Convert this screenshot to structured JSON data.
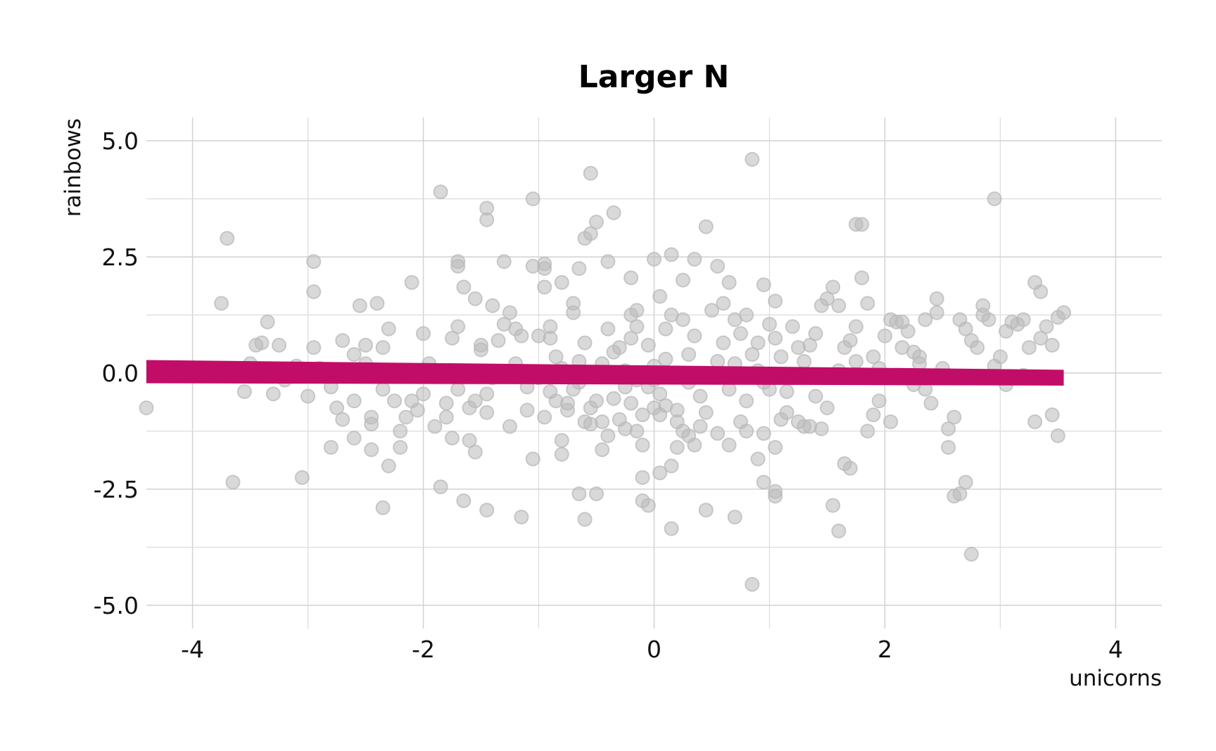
{
  "chart_data": {
    "type": "scatter",
    "title": "Larger N",
    "xlabel": "unicorns",
    "ylabel": "rainbows",
    "xlim": [
      -4.4,
      4.4
    ],
    "ylim": [
      -5.5,
      5.5
    ],
    "x_ticks": [
      -4,
      -2,
      0,
      2,
      4
    ],
    "x_tick_labels": [
      "-4",
      "-2",
      "0",
      "2",
      "4"
    ],
    "y_ticks": [
      5,
      2.5,
      0,
      -2.5,
      -5
    ],
    "y_tick_labels": [
      "5.0",
      "2.5",
      "0.0",
      "-2.5",
      "-5.0"
    ],
    "grid": true,
    "point_color": "#b9b9b9",
    "fit_color": "#c20d68",
    "fit_line": {
      "x": [
        -4.4,
        3.55
      ],
      "y_upper": [
        0.28,
        0.07
      ],
      "y_lower": [
        -0.22,
        -0.27
      ],
      "y_mid": [
        0.03,
        -0.1
      ]
    },
    "points": [
      [
        -4.4,
        -0.75
      ],
      [
        -3.75,
        1.5
      ],
      [
        -3.7,
        2.9
      ],
      [
        -3.65,
        -2.35
      ],
      [
        -3.55,
        -0.4
      ],
      [
        -3.45,
        0.6
      ],
      [
        -3.4,
        0.65
      ],
      [
        -3.35,
        1.1
      ],
      [
        -3.25,
        0.6
      ],
      [
        -3.2,
        -0.15
      ],
      [
        -3.05,
        -2.25
      ],
      [
        -2.95,
        2.4
      ],
      [
        -2.95,
        1.75
      ],
      [
        -2.95,
        0.55
      ],
      [
        -2.8,
        -1.6
      ],
      [
        -2.75,
        -0.75
      ],
      [
        -2.7,
        0.7
      ],
      [
        -2.6,
        -1.4
      ],
      [
        -2.6,
        -0.6
      ],
      [
        -2.55,
        1.45
      ],
      [
        -2.5,
        0.2
      ],
      [
        -2.45,
        -1.65
      ],
      [
        -2.45,
        -0.95
      ],
      [
        -2.4,
        1.5
      ],
      [
        -2.35,
        -2.9
      ],
      [
        -2.35,
        -0.35
      ],
      [
        -2.3,
        0.95
      ],
      [
        -2.2,
        -1.6
      ],
      [
        -2.1,
        1.95
      ],
      [
        -2.05,
        -0.8
      ],
      [
        -2.0,
        0.85
      ],
      [
        -1.95,
        0.2
      ],
      [
        -1.85,
        3.9
      ],
      [
        -1.85,
        -2.45
      ],
      [
        -1.8,
        -0.95
      ],
      [
        -1.75,
        -1.4
      ],
      [
        -1.7,
        2.4
      ],
      [
        -1.7,
        1.0
      ],
      [
        -1.7,
        -0.35
      ],
      [
        -1.65,
        -2.75
      ],
      [
        -1.6,
        -0.75
      ],
      [
        -1.55,
        -1.7
      ],
      [
        -1.55,
        1.6
      ],
      [
        -1.5,
        0.5
      ],
      [
        -1.5,
        0.6
      ],
      [
        -1.45,
        3.55
      ],
      [
        -1.45,
        3.3
      ],
      [
        -1.45,
        -2.95
      ],
      [
        -1.45,
        -0.45
      ],
      [
        -1.4,
        1.45
      ],
      [
        -1.35,
        0.7
      ],
      [
        -1.3,
        2.4
      ],
      [
        -1.25,
        -1.15
      ],
      [
        -1.2,
        0.2
      ],
      [
        -1.15,
        0.8
      ],
      [
        -1.15,
        -3.1
      ],
      [
        -1.1,
        -0.8
      ],
      [
        -1.05,
        -1.85
      ],
      [
        -1.05,
        2.3
      ],
      [
        -1.0,
        0.8
      ],
      [
        -0.95,
        -0.95
      ],
      [
        -0.95,
        2.35
      ],
      [
        -0.95,
        1.85
      ],
      [
        -0.9,
        0.75
      ],
      [
        -0.9,
        1.0
      ],
      [
        -0.85,
        -0.6
      ],
      [
        -0.8,
        1.95
      ],
      [
        -0.8,
        -1.75
      ],
      [
        -0.8,
        -1.45
      ],
      [
        -0.75,
        -0.65
      ],
      [
        -0.7,
        1.5
      ],
      [
        -0.7,
        1.3
      ],
      [
        -0.65,
        0.25
      ],
      [
        -0.6,
        -1.05
      ],
      [
        -0.55,
        -0.75
      ],
      [
        -0.5,
        -2.6
      ],
      [
        -0.45,
        -1.65
      ],
      [
        -0.4,
        0.95
      ],
      [
        -0.35,
        0.45
      ],
      [
        -0.3,
        0.55
      ],
      [
        -0.25,
        -1.2
      ],
      [
        -0.2,
        2.05
      ],
      [
        -0.2,
        1.25
      ],
      [
        -0.15,
        1.0
      ],
      [
        -0.1,
        -0.9
      ],
      [
        -0.05,
        0.6
      ],
      [
        0.0,
        2.45
      ],
      [
        0.0,
        -0.15
      ],
      [
        0.05,
        1.65
      ],
      [
        0.1,
        0.3
      ],
      [
        0.15,
        1.25
      ],
      [
        0.2,
        -1.05
      ],
      [
        0.25,
        2.0
      ],
      [
        0.3,
        0.4
      ],
      [
        0.35,
        0.8
      ],
      [
        0.4,
        -1.15
      ],
      [
        0.45,
        -0.85
      ],
      [
        0.5,
        1.35
      ],
      [
        0.55,
        0.25
      ],
      [
        0.6,
        0.65
      ],
      [
        0.65,
        1.95
      ],
      [
        0.7,
        1.15
      ],
      [
        0.75,
        0.85
      ],
      [
        0.8,
        -0.6
      ],
      [
        0.85,
        0.4
      ],
      [
        0.9,
        0.05
      ],
      [
        0.95,
        -1.3
      ],
      [
        1.0,
        1.05
      ],
      [
        1.05,
        0.75
      ],
      [
        1.1,
        0.35
      ],
      [
        1.15,
        -0.4
      ],
      [
        1.2,
        1.0
      ],
      [
        1.25,
        0.55
      ],
      [
        1.3,
        -1.15
      ],
      [
        1.35,
        0.6
      ],
      [
        1.4,
        0.85
      ],
      [
        1.45,
        1.45
      ],
      [
        1.5,
        1.6
      ],
      [
        1.55,
        1.85
      ],
      [
        1.6,
        1.45
      ],
      [
        1.65,
        0.55
      ],
      [
        1.7,
        0.7
      ],
      [
        1.75,
        1.0
      ],
      [
        1.8,
        2.05
      ],
      [
        1.85,
        -1.25
      ],
      [
        1.9,
        -0.9
      ],
      [
        1.95,
        -0.6
      ],
      [
        2.0,
        0.8
      ],
      [
        2.05,
        1.15
      ],
      [
        2.1,
        1.1
      ],
      [
        2.15,
        1.1
      ],
      [
        2.2,
        0.9
      ],
      [
        2.25,
        0.45
      ],
      [
        2.3,
        0.2
      ],
      [
        2.35,
        1.15
      ],
      [
        2.4,
        -0.65
      ],
      [
        2.45,
        1.6
      ],
      [
        2.5,
        0.1
      ],
      [
        2.55,
        -1.2
      ],
      [
        2.6,
        -0.95
      ],
      [
        2.65,
        1.15
      ],
      [
        2.7,
        0.95
      ],
      [
        2.75,
        0.7
      ],
      [
        2.8,
        0.55
      ],
      [
        2.85,
        1.45
      ],
      [
        2.9,
        1.15
      ],
      [
        2.95,
        0.15
      ],
      [
        3.0,
        0.35
      ],
      [
        3.05,
        0.9
      ],
      [
        3.1,
        1.1
      ],
      [
        3.15,
        1.05
      ],
      [
        3.2,
        -0.05
      ],
      [
        3.25,
        0.55
      ],
      [
        3.3,
        -1.05
      ],
      [
        3.35,
        0.75
      ],
      [
        3.4,
        1.0
      ],
      [
        3.45,
        0.6
      ],
      [
        3.5,
        1.2
      ],
      [
        3.55,
        1.3
      ],
      [
        3.5,
        -1.35
      ],
      [
        3.45,
        -0.9
      ],
      [
        3.35,
        1.75
      ],
      [
        3.3,
        1.95
      ],
      [
        3.2,
        1.15
      ],
      [
        3.05,
        -0.25
      ],
      [
        2.95,
        3.75
      ],
      [
        2.85,
        1.25
      ],
      [
        2.75,
        -3.9
      ],
      [
        2.7,
        -2.35
      ],
      [
        2.65,
        -2.6
      ],
      [
        2.6,
        -2.65
      ],
      [
        2.55,
        -1.6
      ],
      [
        2.45,
        1.3
      ],
      [
        2.35,
        -0.35
      ],
      [
        2.3,
        0.35
      ],
      [
        2.25,
        -0.25
      ],
      [
        2.15,
        0.55
      ],
      [
        2.05,
        -1.05
      ],
      [
        1.95,
        0.1
      ],
      [
        1.85,
        1.5
      ],
      [
        1.8,
        3.2
      ],
      [
        1.75,
        3.2
      ],
      [
        1.7,
        -2.05
      ],
      [
        1.65,
        -1.95
      ],
      [
        1.6,
        -3.4
      ],
      [
        1.55,
        -2.85
      ],
      [
        1.5,
        -0.75
      ],
      [
        1.45,
        -1.2
      ],
      [
        1.35,
        -1.15
      ],
      [
        1.25,
        -1.05
      ],
      [
        1.15,
        -0.85
      ],
      [
        1.05,
        -1.6
      ],
      [
        0.95,
        -0.2
      ],
      [
        0.9,
        -1.85
      ],
      [
        0.85,
        4.6
      ],
      [
        0.85,
        -4.55
      ],
      [
        0.8,
        -1.25
      ],
      [
        0.75,
        -1.05
      ],
      [
        0.7,
        -3.1
      ],
      [
        0.65,
        -1.55
      ],
      [
        0.55,
        -1.3
      ],
      [
        0.45,
        -2.95
      ],
      [
        0.4,
        -0.5
      ],
      [
        0.35,
        -1.55
      ],
      [
        0.3,
        -1.35
      ],
      [
        0.25,
        -1.25
      ],
      [
        0.2,
        -1.6
      ],
      [
        0.15,
        -3.35
      ],
      [
        0.15,
        -2.0
      ],
      [
        0.1,
        -0.7
      ],
      [
        0.05,
        -0.45
      ],
      [
        0.0,
        -0.75
      ],
      [
        -0.05,
        -2.85
      ],
      [
        -0.1,
        -2.75
      ],
      [
        -0.1,
        -1.55
      ],
      [
        -0.15,
        -1.25
      ],
      [
        -0.2,
        -0.65
      ],
      [
        -0.25,
        -0.3
      ],
      [
        -0.3,
        -1.0
      ],
      [
        -0.35,
        -0.55
      ],
      [
        -0.4,
        -1.35
      ],
      [
        -0.45,
        -1.05
      ],
      [
        -0.5,
        -0.6
      ],
      [
        -0.55,
        -1.1
      ],
      [
        -0.6,
        -3.15
      ],
      [
        -0.65,
        -0.2
      ],
      [
        -0.7,
        -0.35
      ],
      [
        -0.75,
        -0.8
      ],
      [
        -0.8,
        0.1
      ],
      [
        -0.85,
        0.35
      ],
      [
        -0.9,
        -0.4
      ],
      [
        -1.0,
        -0.1
      ],
      [
        -1.1,
        -0.3
      ],
      [
        -1.2,
        0.95
      ],
      [
        -1.25,
        1.3
      ],
      [
        -1.3,
        1.05
      ],
      [
        -1.35,
        0.0
      ],
      [
        -1.4,
        -0.1
      ],
      [
        -1.45,
        -0.85
      ],
      [
        -1.55,
        -0.6
      ],
      [
        -1.6,
        -1.45
      ],
      [
        -1.65,
        1.85
      ],
      [
        -1.7,
        2.3
      ],
      [
        -1.75,
        0.75
      ],
      [
        -1.8,
        -0.65
      ],
      [
        -1.9,
        -1.15
      ],
      [
        -2.0,
        -0.45
      ],
      [
        -2.1,
        -0.6
      ],
      [
        -2.15,
        -0.95
      ],
      [
        -2.2,
        -1.25
      ],
      [
        -2.25,
        -0.6
      ],
      [
        -2.3,
        -2.0
      ],
      [
        -2.35,
        0.55
      ],
      [
        -2.45,
        -1.1
      ],
      [
        -2.5,
        0.6
      ],
      [
        -2.55,
        -0.05
      ],
      [
        -2.6,
        0.4
      ],
      [
        -2.7,
        -1.0
      ],
      [
        -2.8,
        -0.3
      ],
      [
        -2.9,
        0.1
      ],
      [
        -3.0,
        -0.5
      ],
      [
        -3.1,
        0.15
      ],
      [
        -3.3,
        -0.45
      ],
      [
        -3.5,
        0.2
      ],
      [
        -0.55,
        4.3
      ],
      [
        -0.5,
        3.25
      ],
      [
        -0.55,
        3.0
      ],
      [
        -0.6,
        2.9
      ],
      [
        -0.35,
        3.45
      ],
      [
        0.45,
        3.15
      ],
      [
        0.55,
        2.3
      ],
      [
        0.35,
        2.45
      ],
      [
        -1.05,
        3.75
      ],
      [
        -0.95,
        2.25
      ],
      [
        -0.4,
        2.4
      ],
      [
        -0.65,
        2.25
      ],
      [
        0.15,
        2.55
      ],
      [
        0.95,
        1.9
      ],
      [
        1.05,
        1.55
      ],
      [
        0.8,
        1.25
      ],
      [
        0.6,
        1.5
      ],
      [
        0.25,
        1.15
      ],
      [
        -0.15,
        1.35
      ],
      [
        0.1,
        0.95
      ],
      [
        0.3,
        -0.2
      ],
      [
        -0.05,
        -0.3
      ],
      [
        0.2,
        -0.8
      ],
      [
        0.0,
        0.15
      ],
      [
        0.05,
        -0.9
      ],
      [
        -0.25,
        0.05
      ],
      [
        0.5,
        -0.05
      ],
      [
        0.7,
        0.2
      ],
      [
        1.3,
        0.25
      ],
      [
        1.0,
        -0.35
      ],
      [
        1.2,
        -0.1
      ],
      [
        1.4,
        -0.5
      ],
      [
        1.6,
        0.05
      ],
      [
        1.75,
        0.25
      ],
      [
        1.9,
        0.35
      ],
      [
        0.9,
        0.65
      ],
      [
        -0.2,
        0.75
      ],
      [
        -0.6,
        0.65
      ],
      [
        -0.45,
        0.2
      ],
      [
        -0.15,
        -0.15
      ],
      [
        0.65,
        -0.35
      ],
      [
        1.1,
        -1.0
      ],
      [
        0.95,
        -2.35
      ],
      [
        1.05,
        -2.55
      ],
      [
        1.05,
        -2.65
      ],
      [
        -0.1,
        -2.25
      ],
      [
        0.05,
        -2.15
      ],
      [
        -0.65,
        -2.6
      ]
    ]
  }
}
